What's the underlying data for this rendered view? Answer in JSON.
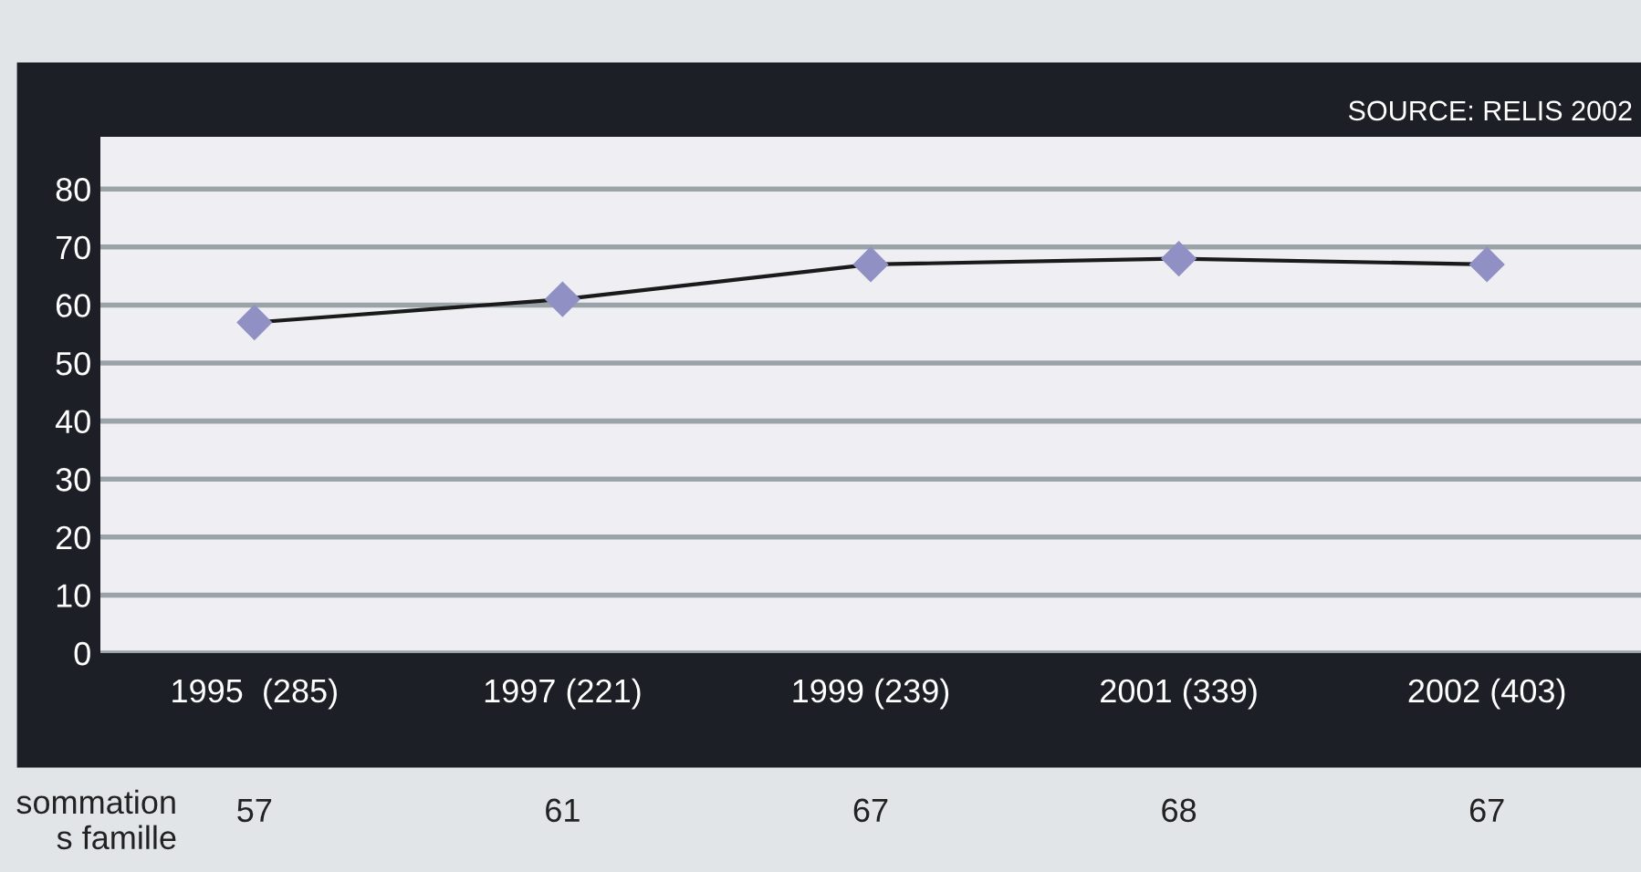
{
  "chart_data": {
    "type": "line",
    "categories": [
      "1995  (285)",
      "1997 (221)",
      "1999 (239)",
      "2001 (339)",
      "2002 (403)"
    ],
    "series": [
      {
        "color": "#9090c4",
        "values": [
          57,
          61,
          67,
          68,
          67
        ]
      }
    ],
    "ylim": [
      0,
      89
    ],
    "yticks": [
      0,
      10,
      20,
      30,
      40,
      50,
      60,
      70,
      80
    ],
    "grid": "y",
    "marker": "diamond",
    "line_style": "solid",
    "data_labels": true,
    "annotations": [
      "SOURCE: RELIS 2002",
      "sommation\ns famille"
    ]
  }
}
